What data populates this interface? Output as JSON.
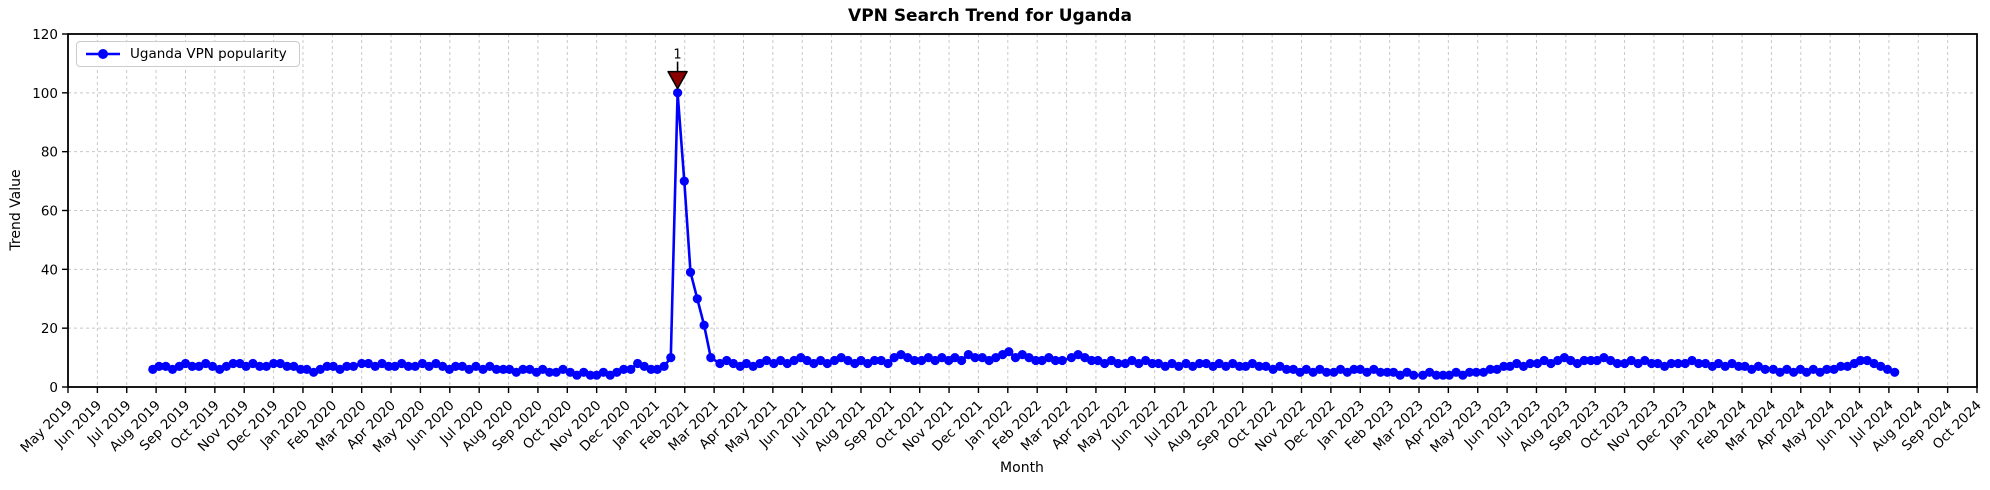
{
  "figure": {
    "title": "VPN Search Trend for Uganda",
    "xlabel": "Month",
    "ylabel": "Trend Value"
  },
  "legend": {
    "label": "Uganda VPN popularity",
    "position": "upper left"
  },
  "chart_data": {
    "type": "line",
    "title": "VPN Search Trend for Uganda",
    "xlabel": "Month",
    "ylabel": "Trend Value",
    "ylim": [
      0,
      120
    ],
    "yticks": [
      0,
      20,
      40,
      60,
      80,
      100,
      120
    ],
    "grid": true,
    "legend_position": "upper left",
    "xticklabels": [
      "May 2019",
      "Jun 2019",
      "Jul 2019",
      "Aug 2019",
      "Sep 2019",
      "Oct 2019",
      "Nov 2019",
      "Dec 2019",
      "Jan 2020",
      "Feb 2020",
      "Mar 2020",
      "Apr 2020",
      "May 2020",
      "Jun 2020",
      "Jul 2020",
      "Aug 2020",
      "Sep 2020",
      "Oct 2020",
      "Nov 2020",
      "Dec 2020",
      "Jan 2021",
      "Feb 2021",
      "Mar 2021",
      "Apr 2021",
      "May 2021",
      "Jun 2021",
      "Jul 2021",
      "Aug 2021",
      "Sep 2021",
      "Oct 2021",
      "Nov 2021",
      "Dec 2021",
      "Jan 2022",
      "Feb 2022",
      "Mar 2022",
      "Apr 2022",
      "May 2022",
      "Jun 2022",
      "Jul 2022",
      "Aug 2022",
      "Sep 2022",
      "Oct 2022",
      "Nov 2022",
      "Dec 2022",
      "Jan 2023",
      "Feb 2023",
      "Mar 2023",
      "Apr 2023",
      "May 2023",
      "Jun 2023",
      "Jul 2023",
      "Aug 2023",
      "Sep 2023",
      "Oct 2023",
      "Nov 2023",
      "Dec 2023",
      "Jan 2024",
      "Feb 2024",
      "Mar 2024",
      "Apr 2024",
      "May 2024",
      "Jun 2024",
      "Jul 2024",
      "Aug 2024",
      "Sep 2024",
      "Oct 2024"
    ],
    "series": [
      {
        "name": "Uganda VPN popularity",
        "color": "#0000ff",
        "marker": "circle",
        "x_start": "2019-07-28",
        "x_interval_days": 7,
        "values": [
          6,
          7,
          7,
          6,
          7,
          8,
          7,
          7,
          8,
          7,
          6,
          7,
          8,
          8,
          7,
          8,
          7,
          7,
          8,
          8,
          7,
          7,
          6,
          6,
          5,
          6,
          7,
          7,
          6,
          7,
          7,
          8,
          8,
          7,
          8,
          7,
          7,
          8,
          7,
          7,
          8,
          7,
          8,
          7,
          6,
          7,
          7,
          6,
          7,
          6,
          7,
          6,
          6,
          6,
          5,
          6,
          6,
          5,
          6,
          5,
          5,
          6,
          5,
          4,
          5,
          4,
          4,
          5,
          4,
          5,
          6,
          6,
          8,
          7,
          6,
          6,
          7,
          10,
          100,
          70,
          39,
          30,
          21,
          10,
          8,
          9,
          8,
          7,
          8,
          7,
          8,
          9,
          8,
          9,
          8,
          9,
          10,
          9,
          8,
          9,
          8,
          9,
          10,
          9,
          8,
          9,
          8,
          9,
          9,
          8,
          10,
          11,
          10,
          9,
          9,
          10,
          9,
          10,
          9,
          10,
          9,
          11,
          10,
          10,
          9,
          10,
          11,
          12,
          10,
          11,
          10,
          9,
          9,
          10,
          9,
          9,
          10,
          11,
          10,
          9,
          9,
          8,
          9,
          8,
          8,
          9,
          8,
          9,
          8,
          8,
          7,
          8,
          7,
          8,
          7,
          8,
          8,
          7,
          8,
          7,
          8,
          7,
          7,
          8,
          7,
          7,
          6,
          7,
          6,
          6,
          5,
          6,
          5,
          6,
          5,
          5,
          6,
          5,
          6,
          6,
          5,
          6,
          5,
          5,
          5,
          4,
          5,
          4,
          4,
          5,
          4,
          4,
          4,
          5,
          4,
          5,
          5,
          5,
          6,
          6,
          7,
          7,
          8,
          7,
          8,
          8,
          9,
          8,
          9,
          10,
          9,
          8,
          9,
          9,
          9,
          10,
          9,
          8,
          8,
          9,
          8,
          9,
          8,
          8,
          7,
          8,
          8,
          8,
          9,
          8,
          8,
          7,
          8,
          7,
          8,
          7,
          7,
          6,
          7,
          6,
          6,
          5,
          6,
          5,
          6,
          5,
          6,
          5,
          6,
          6,
          7,
          7,
          8,
          9,
          9,
          8,
          7,
          6,
          5
        ]
      }
    ],
    "annotation": {
      "text": "1",
      "index": 78,
      "value": 100,
      "marker": "triangle-down",
      "color": "#8b0000"
    },
    "colors": {
      "line": "#0000ff",
      "annotation": "#8b0000",
      "grid": "#c8c8c8",
      "axis": "#000000",
      "background": "#ffffff"
    }
  }
}
